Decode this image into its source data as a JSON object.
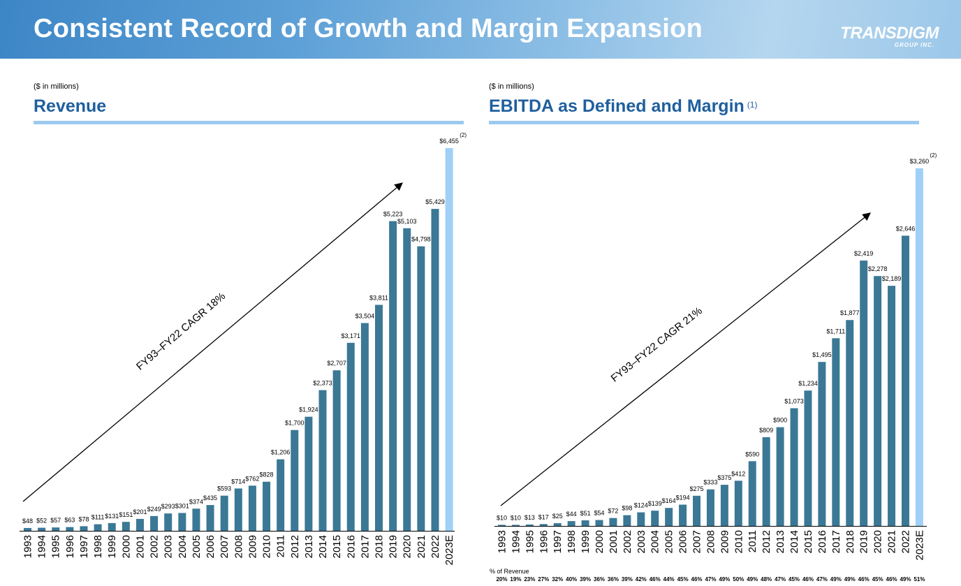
{
  "header": {
    "title": "Consistent Record of Growth and Margin Expansion",
    "logo_main": "TRANSDIGM",
    "logo_sub": "GROUP INC."
  },
  "colors": {
    "bar": "#3b7895",
    "estimate_bar": "#9fd0f7",
    "title_blue": "#1f5f9e",
    "rule": "#9cc9ef"
  },
  "chart_data": [
    {
      "type": "bar",
      "units": "($ in millions)",
      "title": "Revenue",
      "title_note": "",
      "annotation": "FY93–FY22  CAGR 18%",
      "estimate_footnote": "(2)",
      "categories": [
        "1993",
        "1994",
        "1995",
        "1996",
        "1997",
        "1998",
        "1999",
        "2000",
        "2001",
        "2002",
        "2003",
        "2004",
        "2005",
        "2006",
        "2007",
        "2008",
        "2009",
        "2010",
        "2011",
        "2012",
        "2013",
        "2014",
        "2015",
        "2016",
        "2017",
        "2018",
        "2019",
        "2020",
        "2021",
        "2022",
        "2023E"
      ],
      "values": [
        48,
        52,
        57,
        63,
        78,
        111,
        131,
        151,
        201,
        249,
        293,
        301,
        374,
        435,
        593,
        714,
        762,
        828,
        1206,
        1700,
        1924,
        2373,
        2707,
        3171,
        3504,
        3811,
        5223,
        5103,
        4798,
        5429,
        6455
      ],
      "labels": [
        "$48",
        "$52",
        "$57",
        "$63",
        "$78",
        "$111",
        "$131",
        "$151",
        "$201",
        "$249",
        "$293",
        "$301",
        "$374",
        "$435",
        "$593",
        "$714",
        "$762",
        "$828",
        "$1,206",
        "$1,700",
        "$1,924",
        "$2,373",
        "$2,707",
        "$3,171",
        "$3,504",
        "$3,811",
        "$5,223",
        "$5,103",
        "$4,798",
        "$5,429",
        "$6,455"
      ],
      "estimate_index": 30,
      "ylim": [
        0,
        6455
      ],
      "grid": false,
      "legend": "none"
    },
    {
      "type": "bar",
      "units": "($ in millions)",
      "title": "EBITDA as Defined and Margin",
      "title_note": "(1)",
      "annotation": "FY93–FY22 CAGR 21%",
      "estimate_footnote": "(2)",
      "categories": [
        "1993",
        "1994",
        "1995",
        "1996",
        "1997",
        "1998",
        "1999",
        "2000",
        "2001",
        "2002",
        "2003",
        "2004",
        "2005",
        "2006",
        "2007",
        "2008",
        "2009",
        "2010",
        "2011",
        "2012",
        "2013",
        "2014",
        "2015",
        "2016",
        "2017",
        "2018",
        "2019",
        "2020",
        "2021",
        "2022",
        "2023E"
      ],
      "values": [
        10,
        10,
        13,
        17,
        25,
        44,
        51,
        54,
        72,
        98,
        124,
        139,
        164,
        194,
        275,
        333,
        375,
        412,
        590,
        809,
        900,
        1073,
        1234,
        1495,
        1711,
        1877,
        2419,
        2278,
        2189,
        2646,
        3260
      ],
      "labels": [
        "$10",
        "$10",
        "$13",
        "$17",
        "$25",
        "$44",
        "$51",
        "$54",
        "$72",
        "$98",
        "$124",
        "$139",
        "$164",
        "$194",
        "$275",
        "$333",
        "$375",
        "$412",
        "$590",
        "$809",
        "$900",
        "$1,073",
        "$1,234",
        "$1,495",
        "$1,711",
        "$1,877",
        "$2,419",
        "$2,278",
        "$2,189",
        "$2,646",
        "$3,260"
      ],
      "estimate_index": 30,
      "ylim": [
        0,
        3260
      ],
      "grid": false,
      "legend": "none",
      "pct_caption": "% of Revenue",
      "pct_of_revenue": [
        "20%",
        "19%",
        "23%",
        "27%",
        "32%",
        "40%",
        "39%",
        "36%",
        "36%",
        "39%",
        "42%",
        "46%",
        "44%",
        "45%",
        "46%",
        "47%",
        "49%",
        "50%",
        "49%",
        "48%",
        "47%",
        "45%",
        "46%",
        "47%",
        "49%",
        "49%",
        "46%",
        "45%",
        "46%",
        "49%",
        "51%"
      ]
    }
  ]
}
